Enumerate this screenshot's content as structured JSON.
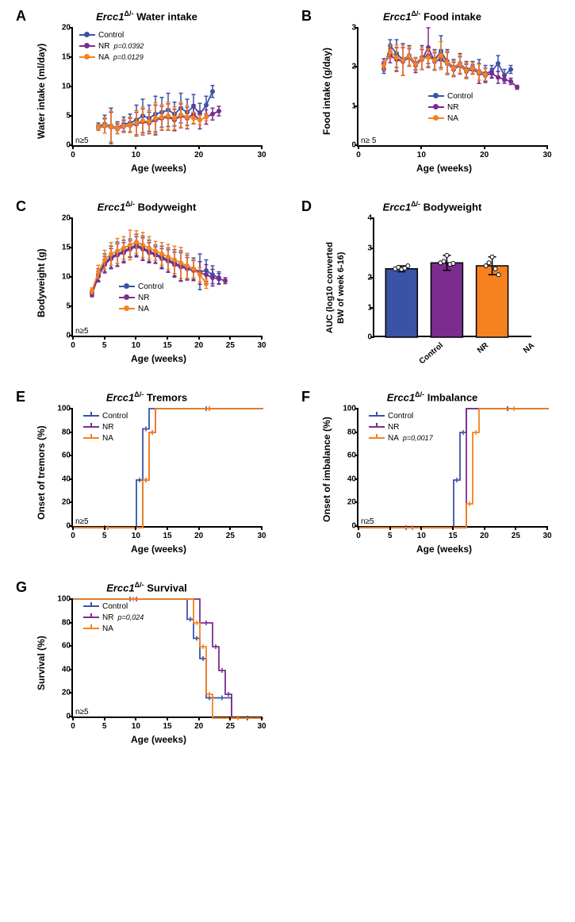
{
  "colors": {
    "control": "#3a53a4",
    "nr": "#7b2d8e",
    "na": "#f5821f",
    "axis": "#000000",
    "bg": "#ffffff"
  },
  "panelA": {
    "label": "A",
    "title_prefix": "Ercc1",
    "title_sup": "Δ/-",
    "title_suffix": " Water intake",
    "ylabel": "Water intake (ml/day)",
    "xlabel": "Age (weeks)",
    "xlim": [
      0,
      30
    ],
    "xtick_step": 10,
    "ylim": [
      0,
      20
    ],
    "ytick_step": 5,
    "n_label": "n≥5",
    "legend": [
      {
        "label": "Control",
        "color": "#3a53a4",
        "pval": ""
      },
      {
        "label": "NR",
        "color": "#7b2d8e",
        "pval": "p=0.0392"
      },
      {
        "label": "NA",
        "color": "#f5821f",
        "pval": "p=0.0129"
      }
    ],
    "series": {
      "control": {
        "x": [
          4,
          5,
          6,
          7,
          8,
          9,
          10,
          11,
          12,
          13,
          14,
          15,
          16,
          17,
          18,
          19,
          20,
          21,
          22
        ],
        "y": [
          3.5,
          3.8,
          3.5,
          3.2,
          3.8,
          4.0,
          4.5,
          5.2,
          4.8,
          5.5,
          5.8,
          6.2,
          5.5,
          6.5,
          5.8,
          6.8,
          5.5,
          7.0,
          9.3
        ],
        "err": [
          0.5,
          1.5,
          3.0,
          1.0,
          1.2,
          1.5,
          2.5,
          2.8,
          2.2,
          3.0,
          2.5,
          2.8,
          2.0,
          2.5,
          2.2,
          2.0,
          1.8,
          1.5,
          1.0
        ]
      },
      "nr": {
        "x": [
          4,
          5,
          6,
          7,
          8,
          9,
          10,
          11,
          12,
          13,
          14,
          15,
          16,
          17,
          18,
          19,
          20,
          21,
          22,
          23
        ],
        "y": [
          3.2,
          3.5,
          3.3,
          3.0,
          3.4,
          3.6,
          3.8,
          4.2,
          4.0,
          4.5,
          4.8,
          5.0,
          4.5,
          5.2,
          4.8,
          5.5,
          4.5,
          5.0,
          5.5,
          6.0
        ],
        "err": [
          0.4,
          1.2,
          2.5,
          0.8,
          1.0,
          1.2,
          2.0,
          2.2,
          1.8,
          2.5,
          2.0,
          2.2,
          1.8,
          2.0,
          1.8,
          1.6,
          1.5,
          1.2,
          1.0,
          0.8
        ]
      },
      "na": {
        "x": [
          4,
          5,
          6,
          7,
          8,
          9,
          10,
          11,
          12,
          13,
          14,
          15,
          16,
          17,
          18,
          19,
          20,
          21
        ],
        "y": [
          3.3,
          3.6,
          3.4,
          3.1,
          3.5,
          3.7,
          4.0,
          4.4,
          4.2,
          4.8,
          5.0,
          5.2,
          4.8,
          5.4,
          5.0,
          4.8,
          4.5,
          5.0
        ],
        "err": [
          0.4,
          1.3,
          2.6,
          0.9,
          1.1,
          1.3,
          2.1,
          2.3,
          1.9,
          2.6,
          2.1,
          2.3,
          1.9,
          2.1,
          1.9,
          1.0,
          0.8,
          0.6
        ]
      }
    }
  },
  "panelB": {
    "label": "B",
    "title_prefix": "Ercc1",
    "title_sup": "Δ/-",
    "title_suffix": " Food intake",
    "ylabel": "Food intake (g/day)",
    "xlabel": "Age (weeks)",
    "xlim": [
      0,
      30
    ],
    "xtick_step": 10,
    "ylim": [
      0,
      3
    ],
    "ytick_step": 1,
    "n_label": "n≥ 5",
    "legend": [
      {
        "label": "Control",
        "color": "#3a53a4"
      },
      {
        "label": "NR",
        "color": "#7b2d8e"
      },
      {
        "label": "NA",
        "color": "#f5821f"
      }
    ],
    "series": {
      "control": {
        "x": [
          4,
          5,
          6,
          7,
          8,
          9,
          10,
          11,
          12,
          13,
          14,
          15,
          16,
          17,
          18,
          19,
          20,
          21,
          22,
          23,
          24
        ],
        "y": [
          1.95,
          2.55,
          2.35,
          2.2,
          2.3,
          2.1,
          2.25,
          2.3,
          2.2,
          2.4,
          2.15,
          2.0,
          2.1,
          1.95,
          2.0,
          1.9,
          1.85,
          1.9,
          2.1,
          1.8,
          1.95
        ],
        "err": [
          0.1,
          0.15,
          0.35,
          0.4,
          0.25,
          0.15,
          0.3,
          0.2,
          0.25,
          0.4,
          0.3,
          0.2,
          0.25,
          0.2,
          0.15,
          0.3,
          0.2,
          0.15,
          0.2,
          0.15,
          0.1
        ]
      },
      "nr": {
        "x": [
          4,
          5,
          6,
          7,
          8,
          9,
          10,
          11,
          12,
          13,
          14,
          15,
          16,
          17,
          18,
          19,
          20,
          21,
          22,
          23,
          24,
          25
        ],
        "y": [
          2.1,
          2.3,
          2.2,
          2.15,
          2.25,
          2.05,
          2.2,
          2.5,
          2.15,
          2.2,
          2.1,
          1.95,
          2.05,
          1.9,
          1.95,
          1.85,
          1.8,
          1.85,
          1.75,
          1.7,
          1.65,
          1.5
        ],
        "err": [
          0.12,
          0.18,
          0.3,
          0.35,
          0.22,
          0.18,
          0.25,
          0.5,
          0.22,
          0.25,
          0.28,
          0.18,
          0.22,
          0.18,
          0.12,
          0.25,
          0.18,
          0.12,
          0.15,
          0.1,
          0.08,
          0.05
        ]
      },
      "na": {
        "x": [
          4,
          5,
          6,
          7,
          8,
          9,
          10,
          11,
          12,
          13,
          14,
          15,
          16,
          17,
          18,
          19,
          20
        ],
        "y": [
          2.05,
          2.4,
          2.25,
          2.18,
          2.28,
          2.08,
          2.22,
          2.25,
          2.18,
          2.3,
          2.12,
          1.98,
          2.08,
          1.92,
          1.98,
          1.88,
          1.82
        ],
        "err": [
          0.11,
          0.16,
          0.32,
          0.38,
          0.24,
          0.16,
          0.28,
          0.22,
          0.24,
          0.35,
          0.29,
          0.19,
          0.24,
          0.19,
          0.14,
          0.2,
          0.15
        ]
      }
    }
  },
  "panelC": {
    "label": "C",
    "title_prefix": "Ercc1",
    "title_sup": "Δ/-",
    "title_suffix": " Bodyweight",
    "ylabel": "Bodyweight (g)",
    "xlabel": "Age (weeks)",
    "xlim": [
      0,
      30
    ],
    "xtick_step": 5,
    "ylim": [
      0,
      20
    ],
    "ytick_step": 5,
    "n_label": "n≥5",
    "legend": [
      {
        "label": "Control",
        "color": "#3a53a4"
      },
      {
        "label": "NR",
        "color": "#7b2d8e"
      },
      {
        "label": "NA",
        "color": "#f5821f"
      }
    ],
    "series": {
      "control": {
        "x": [
          3,
          4,
          5,
          6,
          7,
          8,
          9,
          10,
          11,
          12,
          13,
          14,
          15,
          16,
          17,
          18,
          19,
          20,
          21,
          22,
          23
        ],
        "y": [
          7.5,
          10.5,
          12.5,
          13.5,
          14.0,
          14.5,
          15.0,
          15.5,
          15.0,
          14.5,
          14.0,
          13.5,
          13.0,
          12.5,
          12.0,
          11.8,
          11.5,
          11.0,
          11.2,
          10.5,
          10.0
        ],
        "err": [
          0.5,
          1.0,
          1.5,
          1.8,
          2.0,
          1.8,
          1.5,
          1.8,
          2.0,
          1.8,
          1.5,
          1.8,
          2.0,
          2.2,
          2.5,
          2.0,
          1.8,
          3.0,
          1.8,
          1.5,
          1.0
        ]
      },
      "nr": {
        "x": [
          3,
          4,
          5,
          6,
          7,
          8,
          9,
          10,
          11,
          12,
          13,
          14,
          15,
          16,
          17,
          18,
          19,
          20,
          21,
          22,
          23,
          24
        ],
        "y": [
          7.2,
          10.2,
          12.2,
          13.2,
          13.8,
          14.2,
          14.8,
          15.2,
          14.8,
          14.2,
          13.8,
          13.2,
          12.8,
          12.2,
          11.8,
          11.5,
          11.2,
          10.8,
          10.5,
          10.0,
          9.8,
          9.5
        ],
        "err": [
          0.4,
          0.9,
          1.4,
          1.7,
          1.9,
          1.7,
          1.4,
          1.7,
          1.9,
          1.7,
          1.4,
          1.7,
          1.9,
          2.1,
          2.4,
          1.9,
          1.7,
          1.9,
          1.7,
          1.4,
          0.9,
          0.5
        ]
      },
      "na": {
        "x": [
          3,
          4,
          5,
          6,
          7,
          8,
          9,
          10,
          11,
          12,
          13,
          14,
          15,
          16,
          17,
          18,
          19,
          20,
          21
        ],
        "y": [
          7.8,
          11.0,
          13.0,
          14.0,
          14.5,
          15.0,
          15.5,
          16.0,
          15.5,
          15.0,
          14.5,
          14.0,
          13.5,
          13.0,
          12.5,
          12.0,
          11.5,
          10.5,
          9.0
        ],
        "err": [
          0.5,
          1.1,
          1.6,
          1.9,
          2.1,
          1.9,
          2.5,
          1.9,
          2.1,
          1.9,
          1.6,
          1.9,
          2.1,
          2.3,
          2.6,
          2.1,
          1.5,
          1.2,
          0.8
        ]
      }
    }
  },
  "panelD": {
    "label": "D",
    "title_prefix": "Ercc1",
    "title_sup": "Δ/-",
    "title_suffix": " Bodyweight",
    "ylabel": "AUC  (log10 converted",
    "ylabel2": "BW of week 6-16)",
    "ylim": [
      0,
      4
    ],
    "ytick_step": 1,
    "categories": [
      "Control",
      "NR",
      "NA"
    ],
    "values": [
      2.3,
      2.5,
      2.4
    ],
    "errors": [
      0.1,
      0.25,
      0.3
    ],
    "dots": {
      "Control": [
        2.3,
        2.35,
        2.28,
        2.32,
        2.4
      ],
      "NR": [
        2.5,
        2.55,
        2.75,
        2.45,
        2.48
      ],
      "NA": [
        2.4,
        2.5,
        2.7,
        2.3,
        2.1
      ]
    },
    "bar_colors": [
      "#3a53a4",
      "#7b2d8e",
      "#f5821f"
    ],
    "bar_width": 0.7
  },
  "panelE": {
    "label": "E",
    "title_prefix": "Ercc1",
    "title_sup": "Δ/-",
    "title_suffix": " Tremors",
    "ylabel": "Onset of tremors (%)",
    "xlabel": "Age (weeks)",
    "xlim": [
      0,
      30
    ],
    "xtick_step": 5,
    "ylim": [
      0,
      100
    ],
    "ytick_step": 20,
    "n_label": "n≥5",
    "legend": [
      {
        "label": "Control",
        "color": "#3a53a4"
      },
      {
        "label": "NR",
        "color": "#7b2d8e"
      },
      {
        "label": "NA",
        "color": "#f5821f"
      }
    ],
    "series": {
      "control": {
        "steps": [
          [
            0,
            0
          ],
          [
            10,
            0
          ],
          [
            10,
            40
          ],
          [
            11,
            40
          ],
          [
            11,
            83
          ],
          [
            12,
            83
          ],
          [
            12,
            100
          ],
          [
            30,
            100
          ]
        ]
      },
      "nr": {
        "steps": [
          [
            0,
            0
          ],
          [
            11,
            0
          ],
          [
            11,
            40
          ],
          [
            12,
            40
          ],
          [
            12,
            80
          ],
          [
            13,
            80
          ],
          [
            13,
            100
          ],
          [
            30,
            100
          ]
        ]
      },
      "na": {
        "steps": [
          [
            0,
            0
          ],
          [
            11,
            0
          ],
          [
            11,
            40
          ],
          [
            12,
            40
          ],
          [
            12,
            80
          ],
          [
            13,
            80
          ],
          [
            13,
            100
          ],
          [
            30,
            100
          ]
        ]
      }
    }
  },
  "panelF": {
    "label": "F",
    "title_prefix": "Ercc1",
    "title_sup": "Δ/-",
    "title_suffix": " Imbalance",
    "ylabel": "Onset of imbalance (%)",
    "xlabel": "Age (weeks)",
    "xlim": [
      0,
      30
    ],
    "xtick_step": 5,
    "ylim": [
      0,
      100
    ],
    "ytick_step": 20,
    "n_label": "n≥5",
    "legend": [
      {
        "label": "Control",
        "color": "#3a53a4"
      },
      {
        "label": "NR",
        "color": "#7b2d8e"
      },
      {
        "label": "NA",
        "color": "#f5821f",
        "pval": "p=0,0017"
      }
    ],
    "series": {
      "control": {
        "steps": [
          [
            0,
            0
          ],
          [
            15,
            0
          ],
          [
            15,
            40
          ],
          [
            16,
            40
          ],
          [
            16,
            80
          ],
          [
            17,
            80
          ],
          [
            17,
            100
          ],
          [
            30,
            100
          ]
        ]
      },
      "nr": {
        "steps": [
          [
            0,
            0
          ],
          [
            17,
            0
          ],
          [
            17,
            100
          ],
          [
            30,
            100
          ]
        ]
      },
      "na": {
        "steps": [
          [
            0,
            0
          ],
          [
            17,
            0
          ],
          [
            17,
            20
          ],
          [
            18,
            20
          ],
          [
            18,
            80
          ],
          [
            19,
            80
          ],
          [
            19,
            100
          ],
          [
            30,
            100
          ]
        ]
      }
    }
  },
  "panelG": {
    "label": "G",
    "title_prefix": "Ercc1",
    "title_sup": "Δ/-",
    "title_suffix": " Survival",
    "ylabel": "Survival (%)",
    "xlabel": "Age (weeks)",
    "xlim": [
      0,
      30
    ],
    "xtick_step": 5,
    "ylim": [
      0,
      100
    ],
    "ytick_step": 20,
    "n_label": "n≥5",
    "legend": [
      {
        "label": "Control",
        "color": "#3a53a4"
      },
      {
        "label": "NR",
        "color": "#7b2d8e",
        "pval": "p=0,024"
      },
      {
        "label": "NA",
        "color": "#f5821f"
      }
    ],
    "series": {
      "control": {
        "steps": [
          [
            0,
            100
          ],
          [
            18,
            100
          ],
          [
            18,
            83
          ],
          [
            19,
            83
          ],
          [
            19,
            67
          ],
          [
            20,
            67
          ],
          [
            20,
            50
          ],
          [
            21,
            50
          ],
          [
            21,
            17
          ],
          [
            22,
            17
          ],
          [
            22,
            17
          ],
          [
            25,
            17
          ],
          [
            25,
            0
          ],
          [
            30,
            0
          ]
        ]
      },
      "nr": {
        "steps": [
          [
            0,
            100
          ],
          [
            20,
            100
          ],
          [
            20,
            80
          ],
          [
            22,
            80
          ],
          [
            22,
            60
          ],
          [
            23,
            60
          ],
          [
            23,
            40
          ],
          [
            24,
            40
          ],
          [
            24,
            20
          ],
          [
            25,
            20
          ],
          [
            25,
            0
          ],
          [
            30,
            0
          ]
        ]
      },
      "na": {
        "steps": [
          [
            0,
            100
          ],
          [
            19,
            100
          ],
          [
            19,
            80
          ],
          [
            20,
            80
          ],
          [
            20,
            60
          ],
          [
            21,
            60
          ],
          [
            21,
            20
          ],
          [
            22,
            20
          ],
          [
            22,
            0
          ],
          [
            30,
            0
          ]
        ]
      }
    }
  }
}
